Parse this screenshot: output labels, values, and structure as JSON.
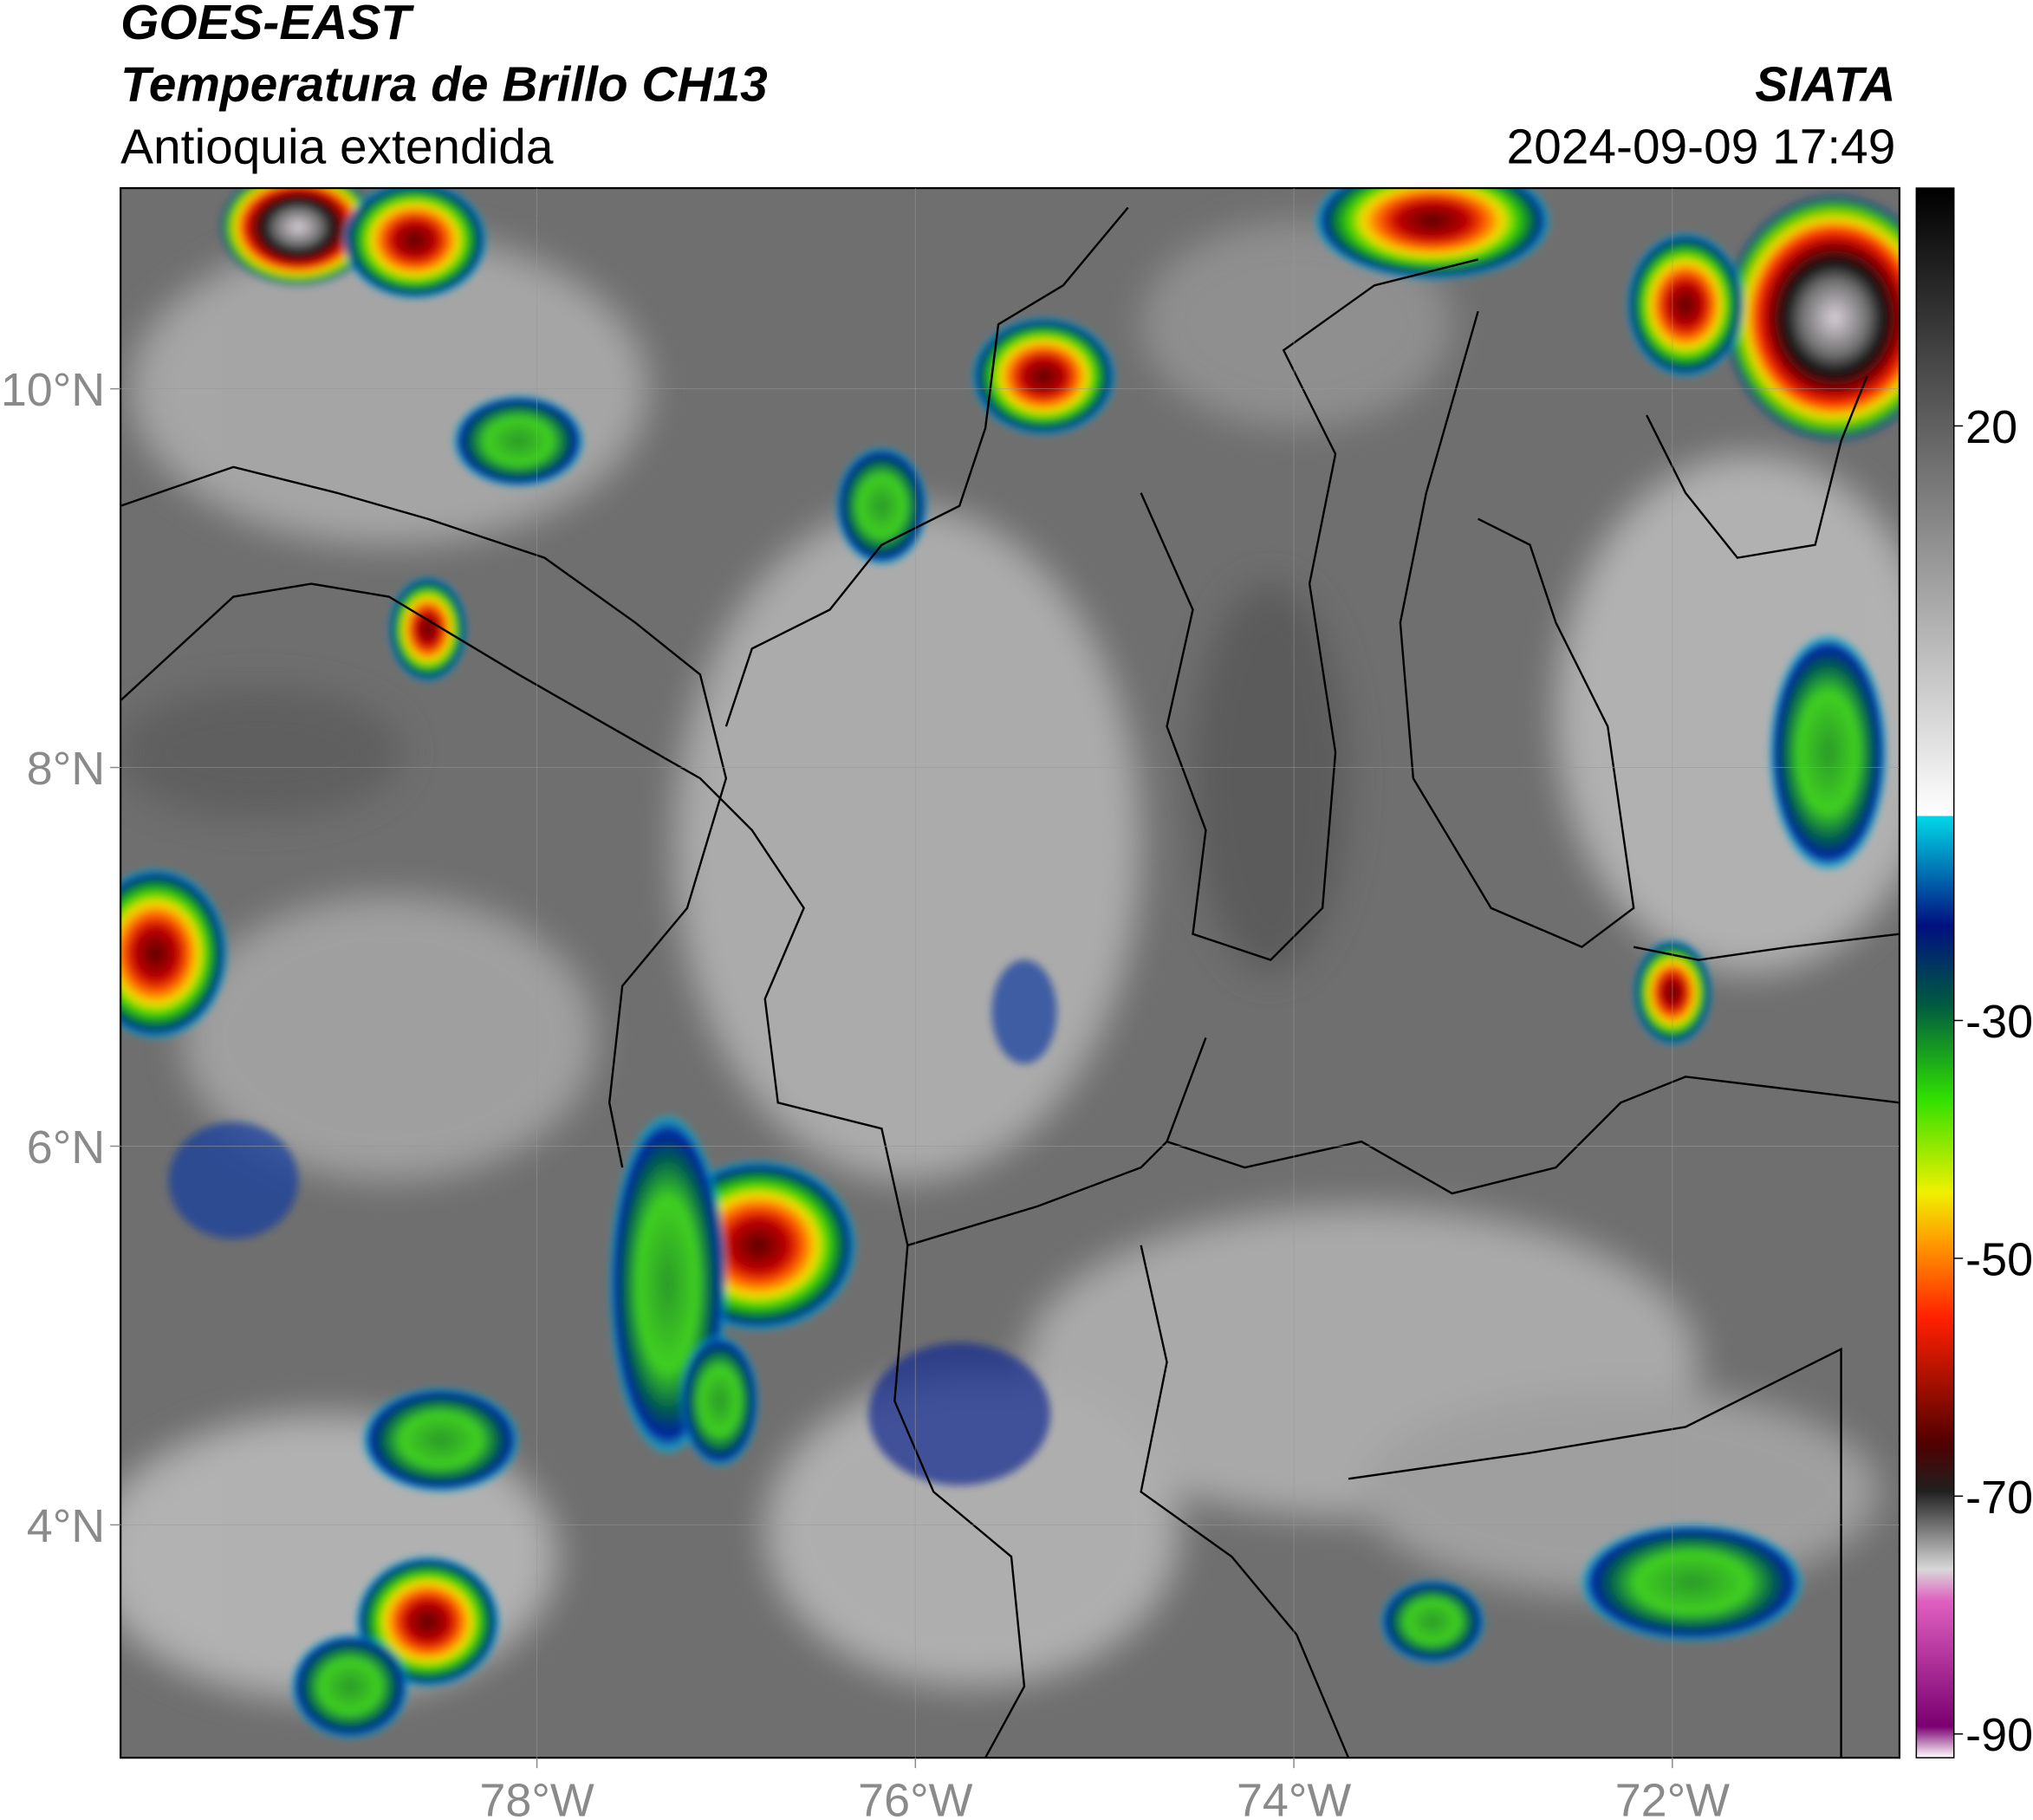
{
  "header": {
    "title": "GOES-EAST",
    "subtitle": "Temperatura de Brillo CH13",
    "region": "Antioquia extendida",
    "agency": "SIATA",
    "timestamp": "2024-09-09 17:49"
  },
  "map": {
    "xlim": [
      -80.2,
      -70.8
    ],
    "ylim": [
      2.77,
      11.06
    ],
    "xticks": [
      {
        "value": -78,
        "label": "78°W"
      },
      {
        "value": -76,
        "label": "76°W"
      },
      {
        "value": -74,
        "label": "74°W"
      },
      {
        "value": -72,
        "label": "72°W"
      }
    ],
    "yticks": [
      {
        "value": 4,
        "label": "4°N"
      },
      {
        "value": 6,
        "label": "6°N"
      },
      {
        "value": 8,
        "label": "8°N"
      },
      {
        "value": 10,
        "label": "10°N"
      }
    ],
    "grid": true
  },
  "colorbar": {
    "lim": [
      -92,
      40
    ],
    "ticks": [
      20,
      -30,
      -50,
      -70,
      -90
    ]
  }
}
